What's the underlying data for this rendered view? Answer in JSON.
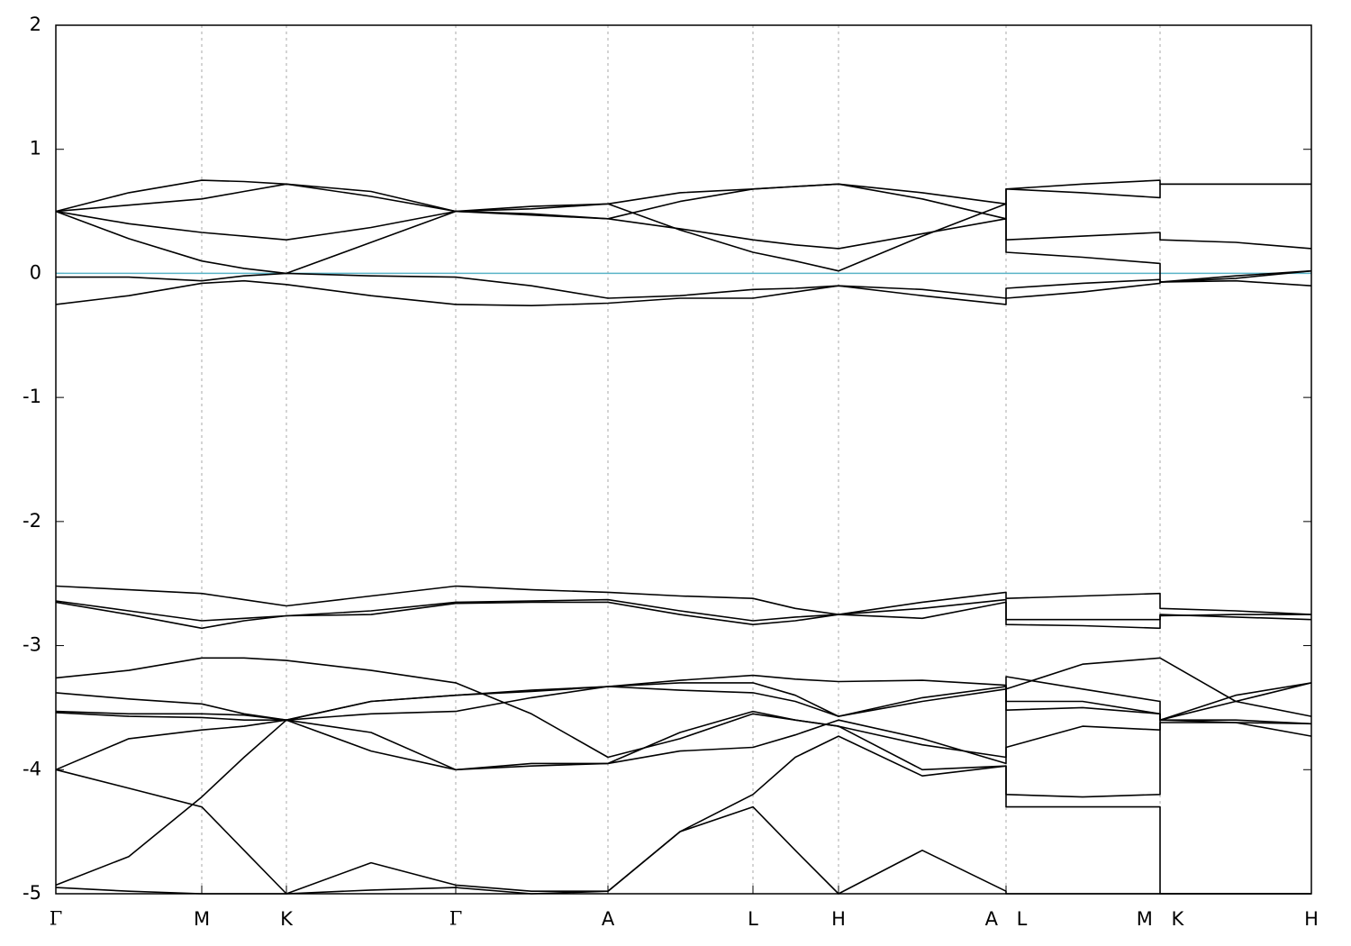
{
  "chart_data": {
    "type": "line",
    "x": [
      0,
      0.81,
      1.62,
      2.09,
      2.56,
      3.5,
      4.44,
      5.28,
      6.13,
      6.93,
      7.74,
      8.21,
      8.69,
      9.62,
      10.55,
      10.55,
      11.4,
      12.26,
      12.26,
      13.1,
      13.94
    ],
    "xlim": [
      0,
      13.94
    ],
    "xticks": [
      {
        "value": 0,
        "label": "Γ"
      },
      {
        "value": 1.62,
        "label": "M"
      },
      {
        "value": 2.56,
        "label": "K"
      },
      {
        "value": 4.44,
        "label": "Γ"
      },
      {
        "value": 6.13,
        "label": "A"
      },
      {
        "value": 7.74,
        "label": "L"
      },
      {
        "value": 8.69,
        "label": "H"
      },
      {
        "value": 10.55,
        "label": "A L"
      },
      {
        "value": 12.26,
        "label": "M K"
      },
      {
        "value": 13.94,
        "label": "H"
      }
    ],
    "ylim": [
      -5,
      2
    ],
    "yticks": [
      -5,
      -4,
      -3,
      -2,
      -1,
      0,
      1,
      2
    ],
    "grid": {
      "x": true,
      "y": false
    },
    "hlines": [
      {
        "value": 0,
        "color": "#5ab4c8"
      }
    ],
    "series": [
      {
        "color": "#000000",
        "values": [
          0.5,
          0.65,
          0.75,
          0.74,
          0.72,
          0.62,
          0.5,
          0.54,
          0.56,
          0.65,
          0.68,
          0.7,
          0.72,
          0.65,
          0.56,
          0.68,
          0.72,
          0.75,
          0.72,
          0.72,
          0.72
        ]
      },
      {
        "color": "#000000",
        "values": [
          0.5,
          0.55,
          0.6,
          0.66,
          0.72,
          0.66,
          0.5,
          0.48,
          0.44,
          0.58,
          0.68,
          0.7,
          0.72,
          0.6,
          0.44,
          0.68,
          0.65,
          0.61,
          0.72,
          0.72,
          0.72
        ]
      },
      {
        "color": "#000000",
        "values": [
          0.5,
          0.4,
          0.33,
          0.3,
          0.27,
          0.37,
          0.5,
          0.47,
          0.44,
          0.36,
          0.27,
          0.23,
          0.2,
          0.32,
          0.44,
          0.27,
          0.3,
          0.33,
          0.27,
          0.25,
          0.2
        ]
      },
      {
        "color": "#000000",
        "values": [
          0.5,
          0.28,
          0.1,
          0.04,
          0,
          0.25,
          0.5,
          0.52,
          0.56,
          0.35,
          0.17,
          0.1,
          0.02,
          0.3,
          0.56,
          0.17,
          0.13,
          0.08,
          -0.07,
          -0.02,
          0.02
        ]
      },
      {
        "color": "#000000",
        "values": [
          -0.03,
          -0.03,
          -0.06,
          -0.02,
          0,
          -0.02,
          -0.03,
          -0.1,
          -0.2,
          -0.18,
          -0.13,
          -0.12,
          -0.1,
          -0.18,
          -0.25,
          -0.2,
          -0.15,
          -0.08,
          -0.07,
          -0.06,
          -0.1
        ]
      },
      {
        "color": "#000000",
        "values": [
          -0.25,
          -0.18,
          -0.08,
          -0.06,
          -0.09,
          -0.18,
          -0.25,
          -0.26,
          -0.24,
          -0.2,
          -0.2,
          -0.15,
          -0.1,
          -0.13,
          -0.2,
          -0.12,
          -0.08,
          -0.05,
          -0.07,
          -0.04,
          0.02
        ]
      },
      {
        "color": "#000000",
        "values": [
          -2.52,
          -2.55,
          -2.58,
          -2.63,
          -2.68,
          -2.6,
          -2.52,
          -2.55,
          -2.57,
          -2.6,
          -2.62,
          -2.7,
          -2.75,
          -2.65,
          -2.57,
          -2.62,
          -2.6,
          -2.58,
          -2.7,
          -2.72,
          -2.75
        ]
      },
      {
        "color": "#000000",
        "values": [
          -2.64,
          -2.72,
          -2.8,
          -2.78,
          -2.76,
          -2.72,
          -2.65,
          -2.64,
          -2.63,
          -2.72,
          -2.8,
          -2.77,
          -2.75,
          -2.7,
          -2.63,
          -2.79,
          -2.79,
          -2.79,
          -2.76,
          -2.75,
          -2.75
        ]
      },
      {
        "color": "#000000",
        "values": [
          -2.65,
          -2.75,
          -2.86,
          -2.8,
          -2.76,
          -2.75,
          -2.66,
          -2.65,
          -2.65,
          -2.75,
          -2.83,
          -2.8,
          -2.75,
          -2.78,
          -2.65,
          -2.83,
          -2.84,
          -2.86,
          -2.75,
          -2.77,
          -2.79
        ]
      },
      {
        "color": "#000000",
        "values": [
          -3.26,
          -3.2,
          -3.1,
          -3.1,
          -3.12,
          -3.2,
          -3.3,
          -3.55,
          -3.9,
          -3.75,
          -3.55,
          -3.6,
          -3.65,
          -3.8,
          -3.9,
          -3.25,
          -3.35,
          -3.45,
          -3.6,
          -3.4,
          -3.3
        ]
      },
      {
        "color": "#000000",
        "values": [
          -3.38,
          -3.43,
          -3.47,
          -3.55,
          -3.6,
          -3.45,
          -3.4,
          -3.36,
          -3.33,
          -3.28,
          -3.24,
          -3.27,
          -3.29,
          -3.28,
          -3.32,
          -3.35,
          -3.15,
          -3.1,
          -3.1,
          -3.45,
          -3.57
        ]
      },
      {
        "color": "#000000",
        "values": [
          -3.53,
          -3.55,
          -3.55,
          -3.56,
          -3.6,
          -3.55,
          -3.53,
          -3.42,
          -3.33,
          -3.36,
          -3.38,
          -3.45,
          -3.57,
          -3.45,
          -3.35,
          -3.52,
          -3.5,
          -3.55,
          -3.6,
          -3.45,
          -3.3
        ]
      },
      {
        "color": "#000000",
        "values": [
          -3.54,
          -3.57,
          -3.58,
          -3.6,
          -3.6,
          -3.7,
          -4.0,
          -3.97,
          -3.95,
          -3.85,
          -3.82,
          -3.72,
          -3.6,
          -3.75,
          -3.95,
          -3.82,
          -3.65,
          -3.68,
          -3.62,
          -3.62,
          -3.63
        ]
      },
      {
        "color": "#000000",
        "values": [
          -4.0,
          -3.75,
          -3.68,
          -3.65,
          -3.6,
          -3.85,
          -4.0,
          -3.95,
          -3.95,
          -3.7,
          -3.53,
          -3.6,
          -3.65,
          -4.0,
          -3.97,
          -4.2,
          -4.22,
          -4.2,
          -3.6,
          -3.62,
          -3.73
        ]
      },
      {
        "color": "#000000",
        "values": [
          -4.0,
          -4.15,
          -4.3,
          -4.65,
          -5.0,
          -4.75,
          -4.93,
          -4.98,
          -4.98,
          -4.5,
          -4.3,
          -4.65,
          -5.0,
          -4.65,
          -4.98,
          -5.0,
          -5.0,
          -5.0,
          -5.0,
          -5.0,
          -5.0
        ]
      },
      {
        "color": "#000000",
        "values": [
          -4.93,
          -4.7,
          -4.22,
          -3.9,
          -3.6,
          -3.45,
          -3.4,
          -3.37,
          -3.33,
          -3.3,
          -3.3,
          -3.4,
          -3.57,
          -3.42,
          -3.33,
          -3.45,
          -3.45,
          -3.55,
          -3.6,
          -3.6,
          -3.63
        ]
      },
      {
        "color": "#000000",
        "values": [
          -4.95,
          -4.98,
          -5.0,
          -5.0,
          -5.0,
          -4.97,
          -4.95,
          -5.0,
          -4.98,
          -4.5,
          -4.2,
          -3.9,
          -3.73,
          -4.05,
          -3.97,
          -4.3,
          -4.3,
          -4.3,
          -5.0,
          -5.0,
          -5.0
        ]
      }
    ]
  }
}
